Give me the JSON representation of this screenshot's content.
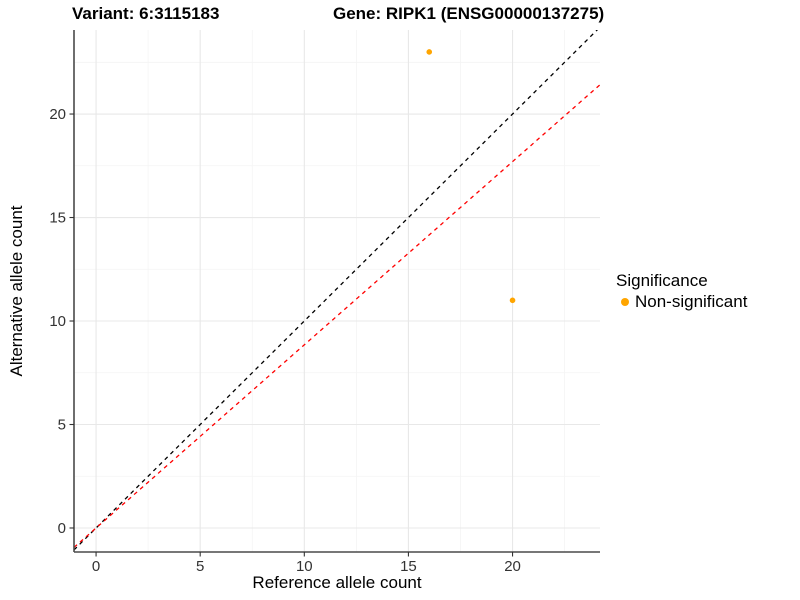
{
  "header": {
    "variant_title": "Variant: 6:3115183",
    "gene_title": "Gene: RIPK1 (ENSG00000137275)"
  },
  "chart_data": {
    "type": "scatter",
    "xlabel": "Reference allele count",
    "ylabel": "Alternative allele count",
    "xlim": [
      -1.06,
      24.2
    ],
    "ylim": [
      -1.16,
      24.06
    ],
    "xticks": [
      0,
      5,
      10,
      15,
      20
    ],
    "yticks": [
      0,
      5,
      10,
      15,
      20
    ],
    "minor_xticks": [
      2.5,
      7.5,
      12.5,
      17.5,
      22.5
    ],
    "minor_yticks": [
      2.5,
      7.5,
      12.5,
      17.5,
      22.5
    ],
    "grid": true,
    "points": [
      {
        "x": 16,
        "y": 23,
        "series": "Non-significant"
      },
      {
        "x": 20,
        "y": 11,
        "series": "Non-significant"
      }
    ],
    "lines": [
      {
        "name": "identity-line",
        "slope": 1,
        "intercept": 0,
        "color": "#000000",
        "style": "dashed"
      },
      {
        "name": "fit-line",
        "slope": 0.885,
        "intercept": 0,
        "color": "#FF0000",
        "style": "dashed"
      }
    ],
    "legend": {
      "title": "Significance",
      "position": "right",
      "items": [
        {
          "label": "Non-significant",
          "color": "#FFA500"
        }
      ]
    },
    "colors": {
      "point": "#FFA500",
      "grid_major": "#E8E8E8",
      "grid_minor": "#F4F4F4",
      "axis_line": "#4A4A4A",
      "tick_text": "#333333"
    }
  }
}
